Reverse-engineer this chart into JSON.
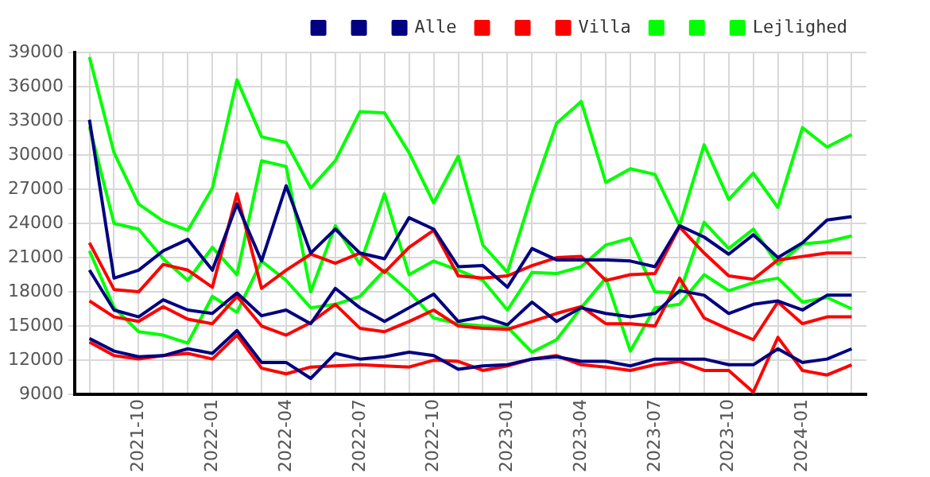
{
  "chart_data": {
    "type": "line",
    "x": [
      "2021-08",
      "2021-09",
      "2021-10",
      "2021-11",
      "2021-12",
      "2022-01",
      "2022-02",
      "2022-03",
      "2022-04",
      "2022-05",
      "2022-06",
      "2022-07",
      "2022-08",
      "2022-09",
      "2022-10",
      "2022-11",
      "2022-12",
      "2023-01",
      "2023-02",
      "2023-03",
      "2023-04",
      "2023-05",
      "2023-06",
      "2023-07",
      "2023-08",
      "2023-09",
      "2023-10",
      "2023-11",
      "2023-12",
      "2024-01",
      "2024-02",
      "2024-03"
    ],
    "xlim": [
      "2021-07-13",
      "2024-03-19"
    ],
    "xticks": [
      {
        "value": "2021-08",
        "label": null
      },
      {
        "value": "2021-09",
        "label": null
      },
      "2021-10",
      {
        "value": "2021-11",
        "label": null
      },
      {
        "value": "2021-12",
        "label": null
      },
      "2022-01",
      {
        "value": "2022-02",
        "label": null
      },
      {
        "value": "2022-03",
        "label": null
      },
      "2022-04",
      {
        "value": "2022-05",
        "label": null
      },
      {
        "value": "2022-06",
        "label": null
      },
      "2022-07",
      {
        "value": "2022-08",
        "label": null
      },
      {
        "value": "2022-09",
        "label": null
      },
      "2022-10",
      {
        "value": "2022-11",
        "label": null
      },
      {
        "value": "2022-12",
        "label": null
      },
      "2023-01",
      {
        "value": "2023-02",
        "label": null
      },
      {
        "value": "2023-03",
        "label": null
      },
      "2023-04",
      {
        "value": "2023-05",
        "label": null
      },
      {
        "value": "2023-06",
        "label": null
      },
      "2023-07",
      {
        "value": "2023-08",
        "label": null
      },
      {
        "value": "2023-09",
        "label": null
      },
      "2023-10",
      {
        "value": "2023-11",
        "label": null
      },
      {
        "value": "2023-12",
        "label": null
      },
      "2024-01",
      {
        "value": "2024-02",
        "label": null
      },
      {
        "value": "2024-03",
        "label": null
      }
    ],
    "ylim": [
      9000,
      39000
    ],
    "yticks": [
      9000,
      12000,
      15000,
      18000,
      21000,
      24000,
      27000,
      30000,
      33000,
      36000,
      39000
    ],
    "grid": true,
    "legend": "top right",
    "marker": "none",
    "series": [
      {
        "color": "#000080",
        "values": [
          33100,
          19200,
          19900,
          21600,
          22600,
          19900,
          25700,
          20700,
          27300,
          21400,
          23500,
          21400,
          20900,
          24500,
          23500,
          20200,
          20300,
          18400,
          21800,
          20800,
          20800,
          20800,
          20700,
          20200,
          23800,
          22800,
          21300,
          23000,
          21000,
          22300,
          24300,
          24600
        ]
      },
      {
        "color": "#000080",
        "values": [
          19900,
          16400,
          15800,
          17300,
          16400,
          16100,
          17900,
          15900,
          16400,
          15200,
          18300,
          16600,
          15400,
          16600,
          17800,
          15400,
          15800,
          15100,
          17100,
          15400,
          16600,
          16100,
          15800,
          16100,
          18100,
          17700,
          16100,
          16900,
          17200,
          16400,
          17700,
          17700
        ]
      },
      {
        "name": "Alle",
        "color": "#000080",
        "values": [
          13900,
          12800,
          12300,
          12400,
          13000,
          12600,
          14600,
          11800,
          11800,
          10400,
          12600,
          12100,
          12300,
          12700,
          12400,
          11200,
          11500,
          11600,
          12100,
          12300,
          11900,
          11900,
          11500,
          12100,
          12100,
          12100,
          11600,
          11600,
          13000,
          11800,
          12100,
          13000
        ]
      },
      {
        "color": "#ff0000",
        "values": [
          22300,
          18200,
          18000,
          20400,
          19900,
          18400,
          26600,
          18300,
          19900,
          21300,
          20500,
          21400,
          19700,
          21900,
          23400,
          19400,
          19200,
          19400,
          20300,
          21000,
          21100,
          19000,
          19500,
          19600,
          23700,
          21400,
          19400,
          19100,
          20800,
          21100,
          21400,
          21400
        ]
      },
      {
        "color": "#ff0000",
        "values": [
          17200,
          15800,
          15400,
          16700,
          15600,
          15200,
          17600,
          15000,
          14200,
          15300,
          16900,
          14800,
          14500,
          15400,
          16400,
          15000,
          14800,
          14700,
          15400,
          16100,
          16700,
          15200,
          15200,
          15000,
          19200,
          15700,
          14700,
          13800,
          17100,
          15200,
          15800,
          15800
        ]
      },
      {
        "name": "Villa",
        "color": "#ff0000",
        "values": [
          13600,
          12400,
          12100,
          12400,
          12600,
          12100,
          14200,
          11300,
          10800,
          11400,
          11500,
          11600,
          11500,
          11400,
          12000,
          11900,
          11100,
          11500,
          12100,
          12400,
          11600,
          11400,
          11100,
          11600,
          11900,
          11100,
          11100,
          9200,
          14000,
          11100,
          10700,
          11600
        ]
      },
      {
        "color": "#00ff00",
        "values": [
          38600,
          30200,
          25700,
          24200,
          23400,
          27100,
          36600,
          31600,
          31100,
          27100,
          29500,
          33800,
          33700,
          30200,
          25800,
          29900,
          22100,
          19700,
          26600,
          32800,
          34700,
          27600,
          28800,
          28300,
          23800,
          30900,
          26100,
          28400,
          25400,
          32400,
          30700,
          31800
        ]
      },
      {
        "color": "#00ff00",
        "values": [
          32500,
          24000,
          23500,
          20900,
          19000,
          21900,
          19500,
          29500,
          29000,
          18000,
          23800,
          20400,
          26600,
          19500,
          20700,
          19900,
          19000,
          16400,
          19700,
          19600,
          20200,
          22100,
          22700,
          18000,
          17900,
          24100,
          21800,
          23500,
          20400,
          22200,
          22400,
          22900
        ]
      },
      {
        "name": "Lejlighed",
        "color": "#00ff00",
        "values": [
          21600,
          16600,
          14500,
          14200,
          13500,
          17600,
          16200,
          20700,
          19000,
          16600,
          16900,
          17600,
          19900,
          18000,
          15700,
          15200,
          15000,
          14900,
          12700,
          13800,
          16600,
          19200,
          12800,
          16600,
          16900,
          19500,
          18100,
          18800,
          19200,
          17100,
          17500,
          16500
        ]
      }
    ]
  }
}
